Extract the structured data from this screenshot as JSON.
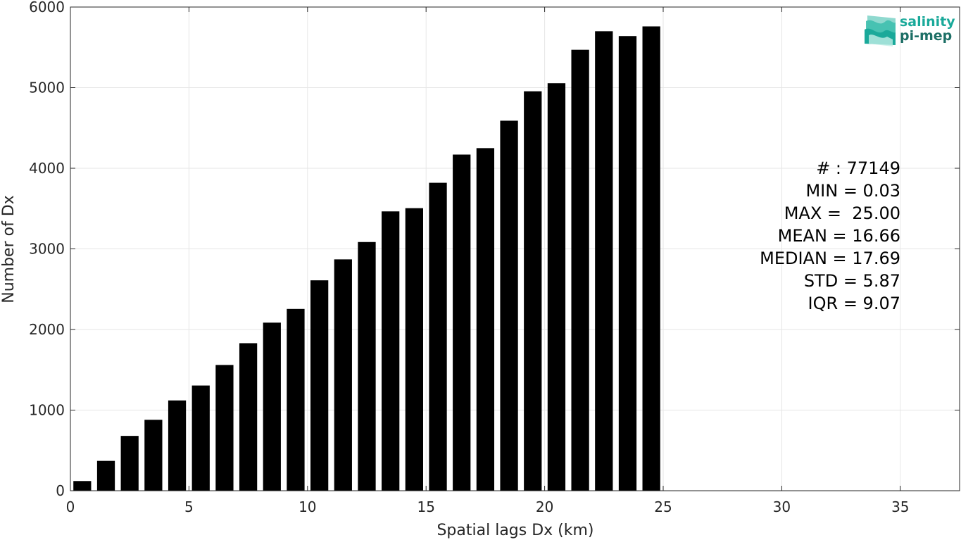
{
  "chart_data": {
    "type": "bar",
    "xlabel": "Spatial lags Dx (km)",
    "ylabel": "Number of Dx",
    "xlim": [
      0,
      37.5
    ],
    "ylim": [
      0,
      6000
    ],
    "xticks": [
      0,
      5,
      10,
      15,
      20,
      25,
      30,
      35
    ],
    "yticks": [
      0,
      1000,
      2000,
      3000,
      4000,
      5000,
      6000
    ],
    "grid": true,
    "bar_width": 0.75,
    "bar_color": "#000000",
    "bins": [
      0.5,
      1.5,
      2.5,
      3.5,
      4.5,
      5.5,
      6.5,
      7.5,
      8.5,
      9.5,
      10.5,
      11.5,
      12.5,
      13.5,
      14.5,
      15.5,
      16.5,
      17.5,
      18.5,
      19.5,
      20.5,
      21.5,
      22.5,
      23.5,
      24.5
    ],
    "values": [
      120,
      370,
      680,
      880,
      1120,
      1305,
      1560,
      1830,
      2085,
      2255,
      2610,
      2870,
      3085,
      3465,
      3505,
      3820,
      4170,
      4250,
      4590,
      4955,
      5055,
      5470,
      5700,
      5640,
      5760
    ]
  },
  "stats": {
    "lines": [
      "# : 77149",
      "MIN = 0.03",
      "MAX =  25.00",
      "MEAN = 16.66",
      "MEDIAN = 17.69",
      "STD = 5.87",
      "IQR = 9.07"
    ]
  },
  "logo": {
    "line1": "salinity",
    "line2": "pi-mep",
    "color1": "#1aa99a",
    "color2": "#1d6f66"
  }
}
